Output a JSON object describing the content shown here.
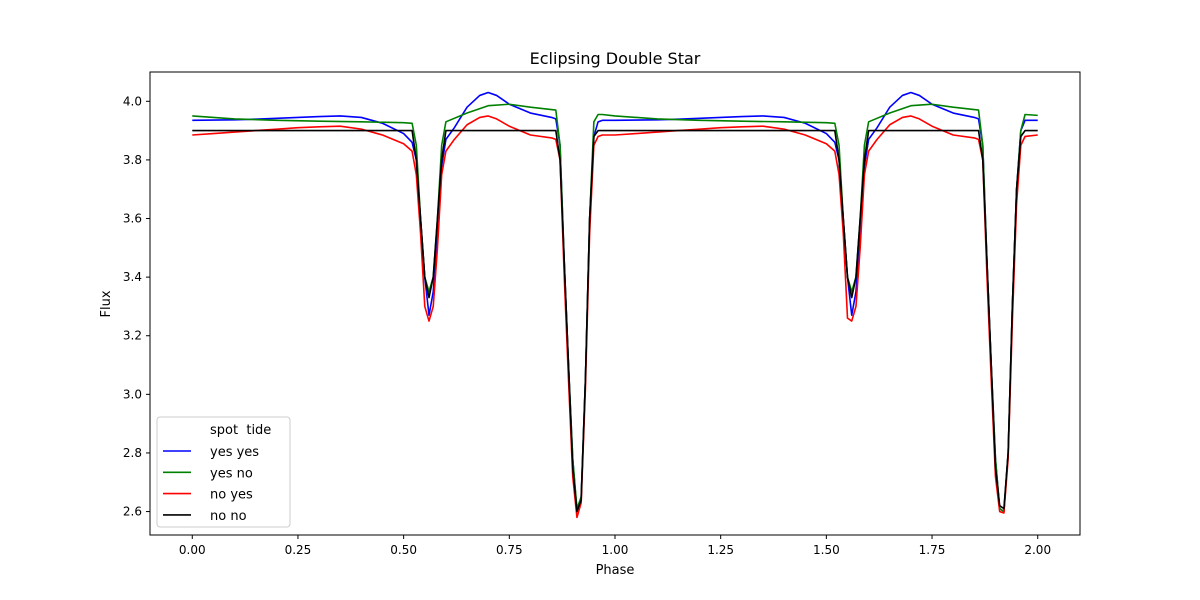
{
  "chart_data": {
    "type": "line",
    "title": "Eclipsing Double Star",
    "xlabel": "Phase",
    "ylabel": "Flux",
    "xlim": [
      -0.1,
      2.1
    ],
    "ylim": [
      2.52,
      4.1
    ],
    "xticks": [
      0.0,
      0.25,
      0.5,
      0.75,
      1.0,
      1.25,
      1.5,
      1.75,
      2.0
    ],
    "xtick_labels": [
      "0.00",
      "0.25",
      "0.50",
      "0.75",
      "1.00",
      "1.25",
      "1.50",
      "1.75",
      "2.00"
    ],
    "yticks": [
      2.6,
      2.8,
      3.0,
      3.2,
      3.4,
      3.6,
      3.8,
      4.0
    ],
    "ytick_labels": [
      "2.6",
      "2.8",
      "3.0",
      "3.2",
      "3.4",
      "3.6",
      "3.8",
      "4.0"
    ],
    "grid": false,
    "legend": {
      "placement": "lower-left",
      "header": "spot  tide",
      "entries": [
        "yes    yes",
        "yes    no",
        "no     yes",
        "no     no"
      ]
    },
    "series": [
      {
        "color": "#0000ff",
        "x": [
          0.0,
          0.05,
          0.1,
          0.15,
          0.2,
          0.25,
          0.3,
          0.35,
          0.4,
          0.45,
          0.5,
          0.52,
          0.53,
          0.54,
          0.55,
          0.56,
          0.57,
          0.58,
          0.59,
          0.6,
          0.62,
          0.65,
          0.68,
          0.7,
          0.72,
          0.75,
          0.8,
          0.85,
          0.86,
          0.87,
          0.88,
          0.89,
          0.9,
          0.91,
          0.92,
          0.93,
          0.94,
          0.95,
          0.96,
          0.97,
          1.0,
          1.05,
          1.1,
          1.15,
          1.2,
          1.25,
          1.3,
          1.35,
          1.4,
          1.45,
          1.5,
          1.52,
          1.53,
          1.54,
          1.55,
          1.56,
          1.57,
          1.58,
          1.59,
          1.6,
          1.62,
          1.65,
          1.68,
          1.7,
          1.72,
          1.75,
          1.8,
          1.85,
          1.86,
          1.87,
          1.88,
          1.89,
          1.9,
          1.91,
          1.92,
          1.93,
          1.94,
          1.95,
          1.96,
          1.97,
          2.0
        ],
        "y": [
          3.935,
          3.936,
          3.937,
          3.939,
          3.942,
          3.945,
          3.948,
          3.95,
          3.945,
          3.925,
          3.89,
          3.86,
          3.8,
          3.6,
          3.4,
          3.27,
          3.35,
          3.55,
          3.78,
          3.87,
          3.91,
          3.98,
          4.02,
          4.03,
          4.02,
          3.99,
          3.96,
          3.945,
          3.94,
          3.85,
          3.45,
          3.1,
          2.78,
          2.6,
          2.65,
          3.05,
          3.6,
          3.88,
          3.93,
          3.935,
          3.935,
          3.936,
          3.937,
          3.939,
          3.942,
          3.945,
          3.948,
          3.95,
          3.945,
          3.925,
          3.89,
          3.86,
          3.8,
          3.6,
          3.4,
          3.27,
          3.35,
          3.55,
          3.78,
          3.87,
          3.91,
          3.98,
          4.02,
          4.03,
          4.02,
          3.99,
          3.96,
          3.945,
          3.94,
          3.85,
          3.45,
          3.1,
          2.78,
          2.61,
          2.6,
          2.8,
          3.3,
          3.7,
          3.9,
          3.935,
          3.935
        ]
      },
      {
        "color": "#008000",
        "x": [
          0.0,
          0.1,
          0.2,
          0.3,
          0.4,
          0.5,
          0.52,
          0.53,
          0.54,
          0.55,
          0.56,
          0.57,
          0.58,
          0.59,
          0.6,
          0.65,
          0.7,
          0.75,
          0.8,
          0.86,
          0.87,
          0.88,
          0.89,
          0.9,
          0.91,
          0.92,
          0.93,
          0.94,
          0.95,
          0.96,
          0.97,
          1.0,
          1.1,
          1.2,
          1.3,
          1.4,
          1.5,
          1.52,
          1.53,
          1.54,
          1.55,
          1.56,
          1.57,
          1.58,
          1.59,
          1.6,
          1.65,
          1.7,
          1.75,
          1.8,
          1.86,
          1.87,
          1.88,
          1.89,
          1.9,
          1.91,
          1.92,
          1.93,
          1.94,
          1.95,
          1.96,
          1.97,
          2.0
        ],
        "y": [
          3.95,
          3.94,
          3.935,
          3.932,
          3.93,
          3.927,
          3.925,
          3.85,
          3.6,
          3.4,
          3.35,
          3.4,
          3.6,
          3.85,
          3.93,
          3.96,
          3.985,
          3.99,
          3.98,
          3.97,
          3.85,
          3.45,
          3.1,
          2.78,
          2.61,
          2.65,
          3.05,
          3.6,
          3.93,
          3.955,
          3.955,
          3.95,
          3.94,
          3.935,
          3.932,
          3.93,
          3.927,
          3.925,
          3.85,
          3.6,
          3.4,
          3.35,
          3.4,
          3.6,
          3.85,
          3.93,
          3.96,
          3.985,
          3.99,
          3.98,
          3.97,
          3.85,
          3.45,
          3.1,
          2.78,
          2.61,
          2.6,
          2.8,
          3.3,
          3.7,
          3.9,
          3.955,
          3.952
        ]
      },
      {
        "color": "#ff0000",
        "x": [
          0.0,
          0.05,
          0.1,
          0.15,
          0.2,
          0.25,
          0.3,
          0.35,
          0.4,
          0.45,
          0.5,
          0.52,
          0.53,
          0.54,
          0.55,
          0.56,
          0.57,
          0.58,
          0.59,
          0.6,
          0.62,
          0.65,
          0.68,
          0.7,
          0.72,
          0.75,
          0.8,
          0.85,
          0.86,
          0.87,
          0.88,
          0.89,
          0.9,
          0.91,
          0.92,
          0.93,
          0.94,
          0.95,
          0.96,
          0.97,
          1.0,
          1.05,
          1.1,
          1.15,
          1.2,
          1.25,
          1.3,
          1.35,
          1.4,
          1.45,
          1.5,
          1.52,
          1.53,
          1.54,
          1.55,
          1.56,
          1.57,
          1.58,
          1.59,
          1.6,
          1.62,
          1.65,
          1.68,
          1.7,
          1.72,
          1.75,
          1.8,
          1.85,
          1.86,
          1.87,
          1.88,
          1.89,
          1.9,
          1.91,
          1.92,
          1.93,
          1.94,
          1.95,
          1.96,
          1.97,
          2.0
        ],
        "y": [
          3.885,
          3.89,
          3.895,
          3.9,
          3.905,
          3.91,
          3.913,
          3.915,
          3.905,
          3.885,
          3.855,
          3.83,
          3.75,
          3.55,
          3.3,
          3.25,
          3.3,
          3.5,
          3.75,
          3.83,
          3.87,
          3.92,
          3.945,
          3.95,
          3.94,
          3.915,
          3.885,
          3.875,
          3.87,
          3.8,
          3.4,
          3.05,
          2.72,
          2.58,
          2.63,
          3.02,
          3.55,
          3.85,
          3.88,
          3.885,
          3.885,
          3.89,
          3.895,
          3.9,
          3.905,
          3.91,
          3.913,
          3.915,
          3.905,
          3.885,
          3.855,
          3.83,
          3.75,
          3.55,
          3.26,
          3.25,
          3.3,
          3.5,
          3.75,
          3.83,
          3.87,
          3.92,
          3.945,
          3.95,
          3.94,
          3.915,
          3.885,
          3.875,
          3.87,
          3.8,
          3.4,
          3.05,
          2.72,
          2.6,
          2.595,
          2.78,
          3.25,
          3.65,
          3.85,
          3.88,
          3.885
        ]
      },
      {
        "color": "#000000",
        "x": [
          0.0,
          0.5,
          0.52,
          0.53,
          0.54,
          0.55,
          0.56,
          0.57,
          0.58,
          0.59,
          0.6,
          0.86,
          0.87,
          0.88,
          0.89,
          0.9,
          0.91,
          0.92,
          0.93,
          0.94,
          0.95,
          0.96,
          0.97,
          1.0,
          1.5,
          1.52,
          1.53,
          1.54,
          1.55,
          1.56,
          1.57,
          1.58,
          1.59,
          1.6,
          1.86,
          1.87,
          1.88,
          1.89,
          1.9,
          1.91,
          1.92,
          1.93,
          1.94,
          1.95,
          1.96,
          1.97,
          2.0
        ],
        "y": [
          3.9,
          3.9,
          3.9,
          3.8,
          3.6,
          3.4,
          3.33,
          3.4,
          3.6,
          3.8,
          3.9,
          3.9,
          3.8,
          3.45,
          3.1,
          2.75,
          2.6,
          2.64,
          3.05,
          3.6,
          3.88,
          3.9,
          3.9,
          3.9,
          3.9,
          3.9,
          3.8,
          3.6,
          3.4,
          3.33,
          3.4,
          3.6,
          3.8,
          3.9,
          3.9,
          3.8,
          3.45,
          3.1,
          2.75,
          2.62,
          2.61,
          2.8,
          3.3,
          3.7,
          3.88,
          3.9,
          3.9
        ]
      }
    ]
  }
}
